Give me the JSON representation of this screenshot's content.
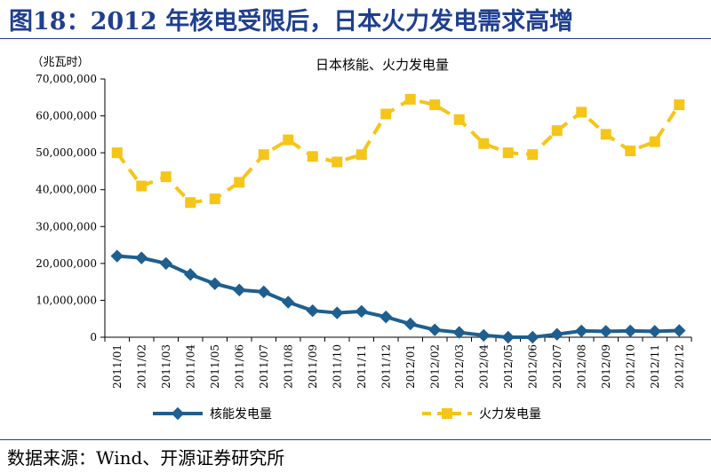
{
  "page": {
    "title": "图18：2012 年核电受限后，日本火力发电需求高增",
    "source": "数据来源：Wind、开源证券研究所"
  },
  "chart_data": {
    "type": "line",
    "title": "日本核能、火力发电量",
    "ylabel": "（兆瓦时）",
    "xlabel": "",
    "ylim": [
      0,
      70000000
    ],
    "yticks": [
      0,
      10000000,
      20000000,
      30000000,
      40000000,
      50000000,
      60000000,
      70000000
    ],
    "ytick_labels": [
      "0",
      "10,000,000",
      "20,000,000",
      "30,000,000",
      "40,000,000",
      "50,000,000",
      "60,000,000",
      "70,000,000"
    ],
    "grid": false,
    "legend": "bottom",
    "categories": [
      "2011/01",
      "2011/02",
      "2011/03",
      "2011/04",
      "2011/05",
      "2011/06",
      "2011/07",
      "2011/08",
      "2011/09",
      "2011/10",
      "2011/11",
      "2011/12",
      "2012/01",
      "2012/02",
      "2012/03",
      "2012/04",
      "2012/05",
      "2012/06",
      "2012/07",
      "2012/08",
      "2012/09",
      "2012/10",
      "2012/11",
      "2012/12"
    ],
    "series": [
      {
        "name": "核能发电量",
        "color": "#1f5f8f",
        "style": "solid",
        "marker": "diamond",
        "values": [
          22000000,
          21500000,
          20000000,
          17000000,
          14500000,
          12800000,
          12300000,
          9500000,
          7200000,
          6600000,
          7000000,
          5500000,
          3600000,
          2000000,
          1300000,
          500000,
          0,
          0,
          800000,
          1700000,
          1600000,
          1700000,
          1600000,
          1800000
        ]
      },
      {
        "name": "火力发电量",
        "color": "#f5c518",
        "style": "dashed",
        "marker": "square",
        "values": [
          50000000,
          41000000,
          43500000,
          36500000,
          37500000,
          42000000,
          49500000,
          53500000,
          49000000,
          47500000,
          49500000,
          60500000,
          64500000,
          63000000,
          59000000,
          52500000,
          50000000,
          49500000,
          56000000,
          61000000,
          55000000,
          50500000,
          53000000,
          63000000
        ]
      }
    ]
  }
}
